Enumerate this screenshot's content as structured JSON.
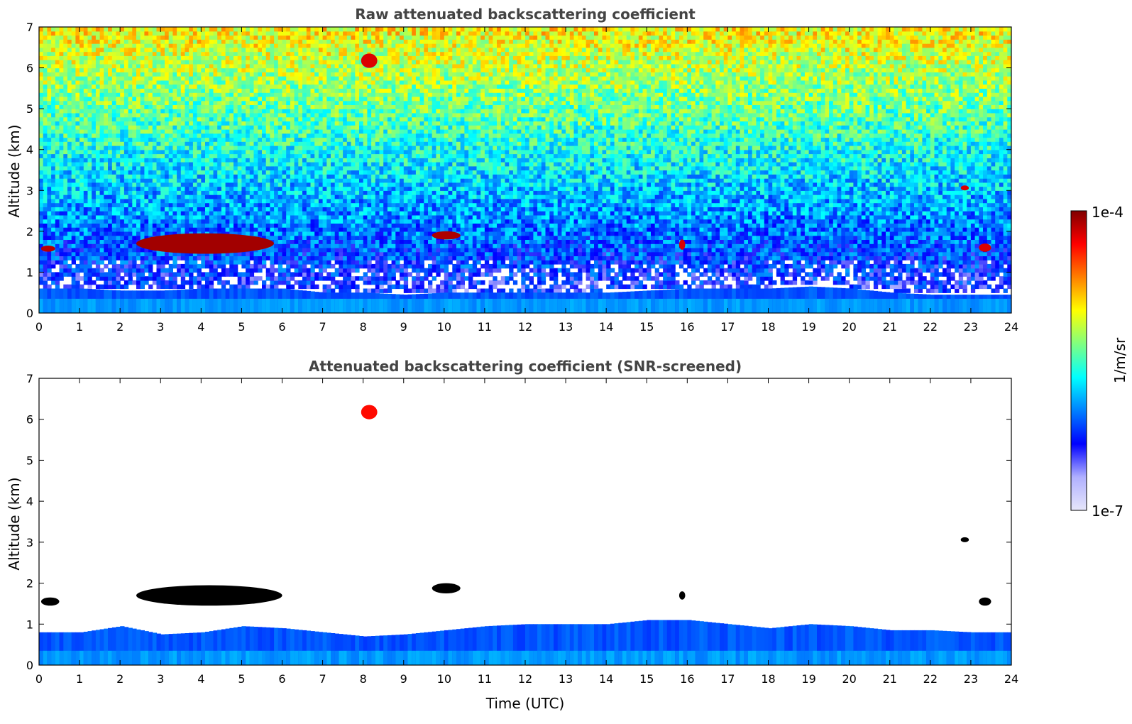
{
  "chart_data": [
    {
      "type": "heatmap",
      "title": "Raw attenuated backscattering coefficient",
      "xlabel": "",
      "ylabel": "Altitude (km)",
      "xlim": [
        0,
        24
      ],
      "ylim": [
        0,
        7
      ],
      "x_ticks": [
        "0",
        "1",
        "2",
        "3",
        "4",
        "5",
        "6",
        "7",
        "8",
        "9",
        "10",
        "11",
        "12",
        "13",
        "14",
        "15",
        "16",
        "17",
        "18",
        "19",
        "20",
        "21",
        "22",
        "23",
        "24"
      ],
      "y_ticks": [
        "0",
        "1",
        "2",
        "3",
        "4",
        "5",
        "6",
        "7"
      ],
      "boundary_layer_top_km": [
        [
          0,
          0.6
        ],
        [
          1,
          0.6
        ],
        [
          2,
          0.55
        ],
        [
          3,
          0.55
        ],
        [
          4,
          0.6
        ],
        [
          5,
          0.6
        ],
        [
          6,
          0.6
        ],
        [
          7,
          0.5
        ],
        [
          8,
          0.5
        ],
        [
          9,
          0.45
        ],
        [
          10,
          0.5
        ],
        [
          11,
          0.5
        ],
        [
          12,
          0.5
        ],
        [
          13,
          0.5
        ],
        [
          14,
          0.5
        ],
        [
          15,
          0.55
        ],
        [
          16,
          0.6
        ],
        [
          17,
          0.6
        ],
        [
          18,
          0.6
        ],
        [
          19,
          0.65
        ],
        [
          20,
          0.6
        ],
        [
          21,
          0.5
        ],
        [
          22,
          0.45
        ],
        [
          23,
          0.45
        ],
        [
          24,
          0.45
        ]
      ],
      "features": [
        {
          "t0": 0.05,
          "t1": 0.4,
          "z0": 1.5,
          "z1": 1.65,
          "level": 0.95
        },
        {
          "t0": 2.4,
          "t1": 5.8,
          "z0": 1.45,
          "z1": 1.95,
          "level": 0.97
        },
        {
          "t0": 7.95,
          "t1": 8.35,
          "z0": 6.0,
          "z1": 6.35,
          "level": 0.92
        },
        {
          "t0": 9.7,
          "t1": 10.4,
          "z0": 1.8,
          "z1": 2.0,
          "level": 0.96
        },
        {
          "t0": 15.8,
          "t1": 15.95,
          "z0": 1.55,
          "z1": 1.8,
          "level": 0.92
        },
        {
          "t0": 22.75,
          "t1": 22.95,
          "z0": 3.0,
          "z1": 3.12,
          "level": 0.92
        },
        {
          "t0": 23.2,
          "t1": 23.5,
          "z0": 1.5,
          "z1": 1.7,
          "level": 0.92
        }
      ]
    },
    {
      "type": "heatmap",
      "title": "Attenuated backscattering coefficient (SNR-screened)",
      "xlabel": "Time (UTC)",
      "ylabel": "Altitude (km)",
      "xlim": [
        0,
        24
      ],
      "ylim": [
        0,
        7
      ],
      "x_ticks": [
        "0",
        "1",
        "2",
        "3",
        "4",
        "5",
        "6",
        "7",
        "8",
        "9",
        "10",
        "11",
        "12",
        "13",
        "14",
        "15",
        "16",
        "17",
        "18",
        "19",
        "20",
        "21",
        "22",
        "23",
        "24"
      ],
      "y_ticks": [
        "0",
        "1",
        "2",
        "3",
        "4",
        "5",
        "6",
        "7"
      ],
      "boundary_layer_top_km": [
        [
          0,
          0.8
        ],
        [
          1,
          0.8
        ],
        [
          2,
          0.95
        ],
        [
          3,
          0.75
        ],
        [
          4,
          0.8
        ],
        [
          5,
          0.95
        ],
        [
          6,
          0.9
        ],
        [
          7,
          0.8
        ],
        [
          8,
          0.7
        ],
        [
          9,
          0.75
        ],
        [
          10,
          0.85
        ],
        [
          11,
          0.95
        ],
        [
          12,
          1.0
        ],
        [
          13,
          1.0
        ],
        [
          14,
          1.0
        ],
        [
          15,
          1.1
        ],
        [
          16,
          1.1
        ],
        [
          17,
          1.0
        ],
        [
          18,
          0.9
        ],
        [
          19,
          1.0
        ],
        [
          20,
          0.95
        ],
        [
          21,
          0.85
        ],
        [
          22,
          0.85
        ],
        [
          23,
          0.8
        ],
        [
          24,
          0.8
        ]
      ],
      "features": [
        {
          "t0": 0.05,
          "t1": 0.5,
          "z0": 1.45,
          "z1": 1.65,
          "level": 1.0
        },
        {
          "t0": 2.4,
          "t1": 6.0,
          "z0": 1.45,
          "z1": 1.95,
          "level": 1.0
        },
        {
          "t0": 7.95,
          "t1": 8.35,
          "z0": 6.0,
          "z1": 6.35,
          "level": 0.88
        },
        {
          "t0": 9.7,
          "t1": 10.4,
          "z0": 1.75,
          "z1": 2.0,
          "level": 1.0
        },
        {
          "t0": 15.8,
          "t1": 15.95,
          "z0": 1.6,
          "z1": 1.8,
          "level": 1.0
        },
        {
          "t0": 22.75,
          "t1": 22.95,
          "z0": 3.0,
          "z1": 3.12,
          "level": 1.0
        },
        {
          "t0": 23.2,
          "t1": 23.5,
          "z0": 1.45,
          "z1": 1.65,
          "level": 1.0
        }
      ]
    }
  ],
  "colorbar": {
    "label": "1/m/sr",
    "max_label": "1e-4",
    "min_label": "1e-7",
    "colors": [
      "#e6e6fa",
      "#b0b0ff",
      "#0000ff",
      "#0080ff",
      "#00ffff",
      "#80ff80",
      "#ffff00",
      "#ff8000",
      "#ff0000",
      "#800000"
    ]
  }
}
